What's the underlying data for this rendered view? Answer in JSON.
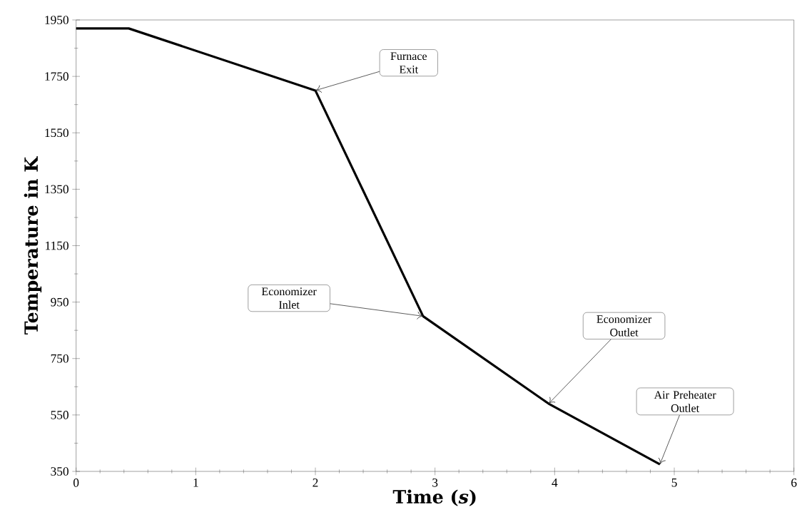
{
  "chart_data": {
    "type": "line",
    "xlabel": "Time (*s*)",
    "ylabel": "Temperature in K",
    "x": [
      0,
      0.44,
      2,
      2.9,
      3.95,
      4.88
    ],
    "values": [
      1920,
      1920,
      1700,
      900,
      590,
      375
    ],
    "color": "#000000",
    "marker": "none",
    "line_style": "solid",
    "grid": false,
    "xlim": [
      0,
      6
    ],
    "ylim": [
      350,
      1950
    ],
    "xticks": [
      0,
      1,
      2,
      3,
      4,
      5,
      6
    ],
    "yticks": [
      350,
      550,
      750,
      950,
      1150,
      1350,
      1550,
      1750,
      1950
    ],
    "annotations": [
      {
        "text": "Furnace Exit",
        "x": 2,
        "y": 1700
      },
      {
        "text": "Economizer Inlet",
        "x": 2.9,
        "y": 900
      },
      {
        "text": "Economizer Outlet",
        "x": 3.95,
        "y": 590
      },
      {
        "text": "Air Preheater Outlet",
        "x": 4.88,
        "y": 375
      }
    ]
  }
}
